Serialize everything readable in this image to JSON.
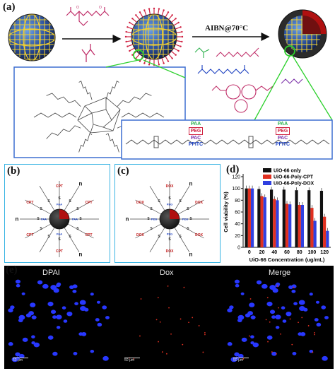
{
  "panel_a": {
    "label": "(a)",
    "reaction": "AIBN@70°C",
    "block_labels": {
      "paa": "PAA",
      "peg": "PEG",
      "pac": "PAC",
      "pfitc": "PFITC"
    }
  },
  "panel_b": {
    "label": "(b)",
    "outer_unit": "CPT",
    "inner_unit": "PAA",
    "linker": "S",
    "end": "n"
  },
  "panel_c": {
    "label": "(c)",
    "outer_unit": "DOX",
    "inner_unit": "PEG",
    "linker": "S",
    "amine": "NH",
    "end": "n"
  },
  "panel_d": {
    "label": "(d)",
    "chart_data": {
      "type": "bar",
      "title": "",
      "xlabel": "UiO-66 Concentration (ug/mL)",
      "ylabel": "Cell viability (%)",
      "ylim": [
        0,
        120
      ],
      "yticks": [
        0,
        20,
        40,
        60,
        80,
        100,
        120
      ],
      "categories": [
        "0",
        "20",
        "40",
        "60",
        "80",
        "100",
        "120"
      ],
      "legend_position": "top",
      "series": [
        {
          "name": "UiO-66 only",
          "color": "#111111",
          "values": [
            100,
            99,
            98,
            98,
            97,
            97,
            96
          ]
        },
        {
          "name": "UiO-66-Poly-CPT",
          "color": "#e03020",
          "values": [
            100,
            87,
            82,
            74,
            72,
            67,
            52
          ]
        },
        {
          "name": "UiO-66-Poly-DOX",
          "color": "#3040e0",
          "values": [
            100,
            85,
            80,
            73,
            72,
            45,
            28
          ]
        }
      ]
    }
  },
  "panel_e": {
    "label": "(e)",
    "images": [
      {
        "label": "DPAI",
        "scale": "50 μm"
      },
      {
        "label": "Dox",
        "scale": "50 μm"
      },
      {
        "label": "Merge",
        "scale": "50 μm"
      }
    ]
  }
}
